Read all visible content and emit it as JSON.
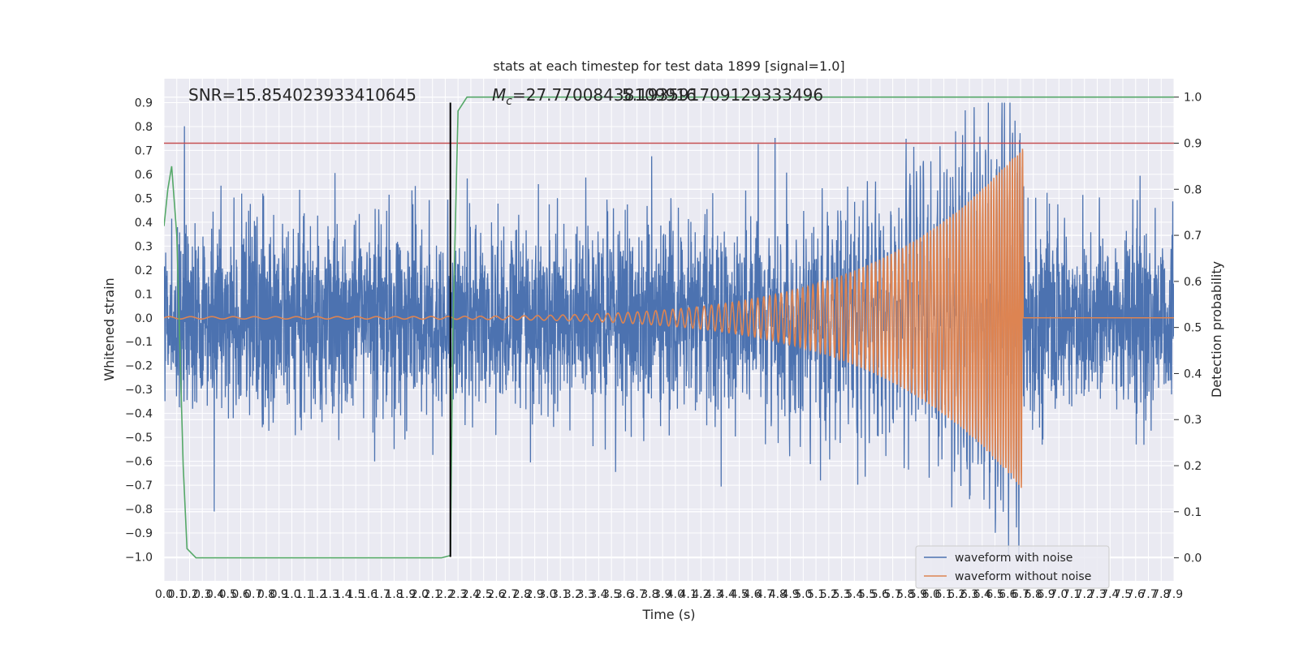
{
  "chart_data": {
    "type": "line",
    "title": "stats at each timestep for test data 1899 [signal=1.0]",
    "xlabel": "Time (s)",
    "ylabel_left": "Whitened strain",
    "ylabel_right": "Detection probability",
    "xlim": [
      0.0,
      7.9
    ],
    "ylim_left": [
      -1.1,
      1.0
    ],
    "ylim_right": [
      -0.05,
      1.04
    ],
    "x_ticks": [
      0.0,
      0.1,
      0.2,
      0.3,
      0.4,
      0.5,
      0.6,
      0.7,
      0.8,
      0.9,
      1.0,
      1.1,
      1.2,
      1.3,
      1.4,
      1.5,
      1.6,
      1.7,
      1.8,
      1.9,
      2.0,
      2.1,
      2.2,
      2.3,
      2.4,
      2.5,
      2.6,
      2.7,
      2.8,
      2.9,
      3.0,
      3.1,
      3.2,
      3.3,
      3.4,
      3.5,
      3.6,
      3.7,
      3.8,
      3.9,
      4.0,
      4.1,
      4.2,
      4.3,
      4.4,
      4.5,
      4.6,
      4.7,
      4.8,
      4.9,
      5.0,
      5.1,
      5.2,
      5.3,
      5.4,
      5.5,
      5.6,
      5.7,
      5.8,
      5.9,
      6.0,
      6.1,
      6.2,
      6.3,
      6.4,
      6.5,
      6.6,
      6.7,
      6.8,
      6.9,
      7.0,
      7.1,
      7.2,
      7.3,
      7.4,
      7.5,
      7.6,
      7.7,
      7.8,
      7.9
    ],
    "y_ticks_left": [
      -1.0,
      -0.9,
      -0.8,
      -0.7,
      -0.6,
      -0.5,
      -0.4,
      -0.3,
      -0.2,
      -0.1,
      0.0,
      0.1,
      0.2,
      0.3,
      0.4,
      0.5,
      0.6,
      0.7,
      0.8,
      0.9
    ],
    "y_ticks_right": [
      0.0,
      0.1,
      0.2,
      0.3,
      0.4,
      0.5,
      0.6,
      0.7,
      0.8,
      0.9,
      1.0
    ],
    "grid": true,
    "legend_position": "bottom-right",
    "annotations": {
      "snr": "SNR=15.854023933410645",
      "mc_symbol": "M",
      "mc_sub": "c",
      "mc_value": "=27.77008438109916",
      "overlap_value": "5.193591709129333496"
    },
    "series": [
      {
        "name": "waveform with noise",
        "axis": "left",
        "color": "#4c72b0",
        "noise_level": 0.2,
        "peak_clip": 0.9
      },
      {
        "name": "waveform without noise",
        "axis": "left",
        "color": "#dd8452",
        "chirp": {
          "t_start": 0.0,
          "t_merge": 6.72,
          "amp_start": 0.005,
          "amp_peak": 0.72,
          "freq_start": 6,
          "freq_merge": 40
        }
      },
      {
        "name": "detection probability",
        "axis": "right",
        "color": "#55a868",
        "x": [
          0.0,
          0.03,
          0.06,
          0.1,
          0.15,
          0.18,
          0.25,
          0.3,
          0.5,
          1.0,
          1.5,
          2.0,
          2.17,
          2.24,
          2.26,
          2.3,
          2.37,
          3.0,
          5.0,
          7.9
        ],
        "y": [
          0.72,
          0.8,
          0.85,
          0.7,
          0.2,
          0.02,
          0.0,
          0.0,
          0.0,
          0.0,
          0.0,
          0.0,
          0.0,
          0.005,
          0.5,
          0.97,
          1.0,
          1.0,
          1.0,
          1.0
        ]
      }
    ],
    "threshold": {
      "axis": "right",
      "value": 0.9,
      "color": "#c44e52"
    },
    "event_marker": {
      "x": 2.24,
      "color": "#000000"
    },
    "colors": {
      "axes_bg": "#eaeaf2",
      "grid": "#ffffff",
      "text": "#262626"
    }
  }
}
